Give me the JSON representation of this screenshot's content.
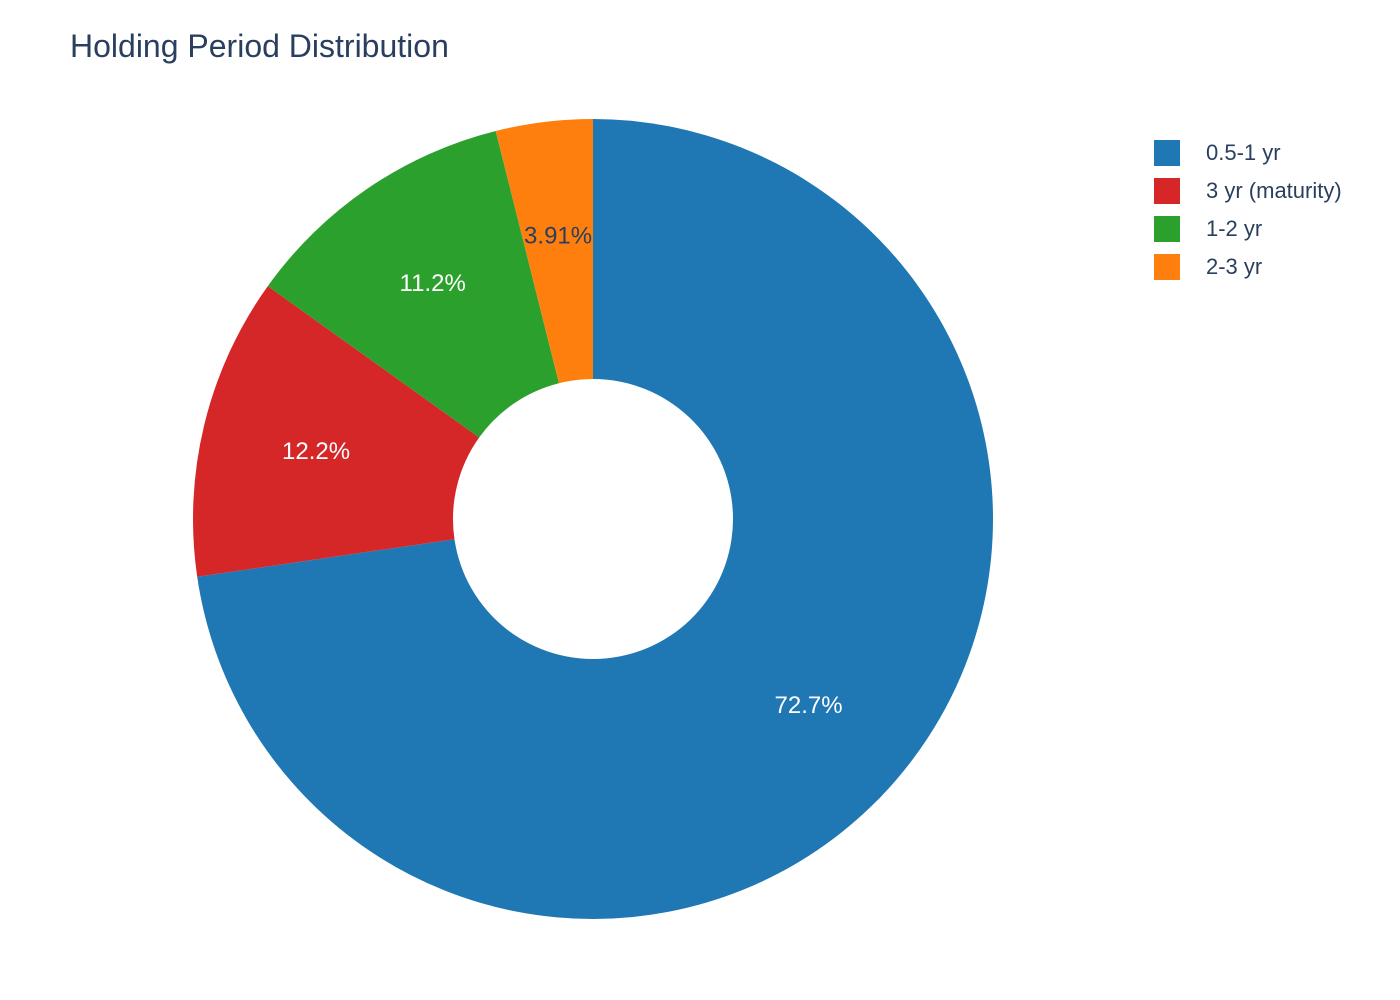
{
  "chart_data": {
    "type": "pie",
    "title": "Holding Period Distribution",
    "hole": true,
    "legend_placement": "top-right",
    "slices": [
      {
        "label": "0.5-1 yr",
        "value": 72.7,
        "text": "72.7%",
        "color": "#1f77b4",
        "text_color": "#ffffff"
      },
      {
        "label": "3 yr (maturity)",
        "value": 12.2,
        "text": "12.2%",
        "color": "#d62728",
        "text_color": "#ffffff"
      },
      {
        "label": "1-2 yr",
        "value": 11.2,
        "text": "11.2%",
        "color": "#2ca02c",
        "text_color": "#ffffff"
      },
      {
        "label": "2-3 yr",
        "value": 3.91,
        "text": "3.91%",
        "color": "#ff7f0e",
        "text_color": "#2a3f5f"
      }
    ]
  }
}
